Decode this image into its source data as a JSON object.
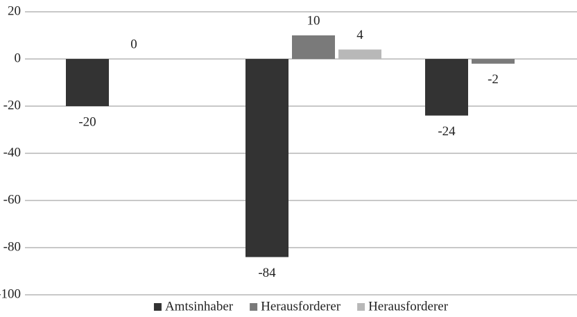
{
  "chart_data": {
    "type": "bar",
    "categories": [
      null,
      null,
      null
    ],
    "series": [
      {
        "name": "Amtsinhaber",
        "color": "#333333",
        "values": [
          -20,
          -84,
          -24
        ]
      },
      {
        "name": "Herausforderer",
        "color": "#7a7a7a",
        "values": [
          0,
          10,
          -2
        ]
      },
      {
        "name": "Herausforderer",
        "color": "#b8b8b8",
        "values": [
          null,
          4,
          null
        ]
      }
    ],
    "ylim": [
      -100,
      20
    ],
    "yticks": [
      -100,
      -80,
      -60,
      -40,
      -20,
      0,
      20
    ],
    "grid": true,
    "legend": "bottom"
  }
}
